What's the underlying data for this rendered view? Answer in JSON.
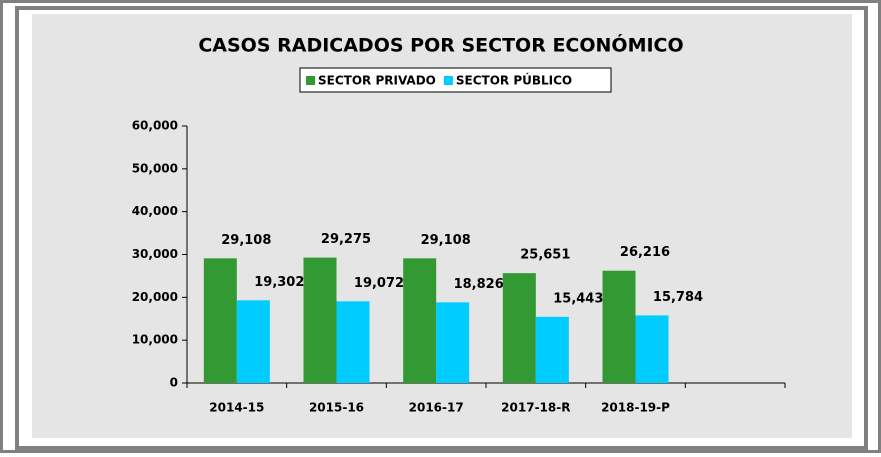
{
  "chart_data": {
    "type": "bar",
    "title": "CASOS RADICADOS POR SECTOR ECONÓMICO",
    "categories": [
      "2014-15",
      "2015-16",
      "2016-17",
      "2017-18-R",
      "2018-19-P",
      null
    ],
    "series": [
      {
        "name": "SECTOR PRIVADO",
        "color": "#339933",
        "values": [
          29108,
          29275,
          29108,
          25651,
          26216,
          null
        ],
        "value_labels": [
          "29,108",
          "29,275",
          "29,108",
          "25,651",
          "26,216",
          null
        ]
      },
      {
        "name": "SECTOR PÚBLICO",
        "color": "#00ccff",
        "values": [
          19302,
          19072,
          18826,
          15443,
          15784,
          null
        ],
        "value_labels": [
          "19,302",
          "19,072",
          "18,826",
          "15,443",
          "15,784",
          null
        ]
      }
    ],
    "ylim": [
      0,
      60000
    ],
    "yticks": [
      0,
      {
        "value": 10000,
        "label": "10,000"
      },
      {
        "value": 20000,
        "label": "20,000"
      },
      {
        "value": 30000,
        "label": "30,000"
      },
      {
        "value": 40000,
        "label": "40,000"
      },
      {
        "value": 50000,
        "label": "50,000"
      },
      {
        "value": 60000,
        "label": "60,000"
      }
    ],
    "legend": "top"
  }
}
